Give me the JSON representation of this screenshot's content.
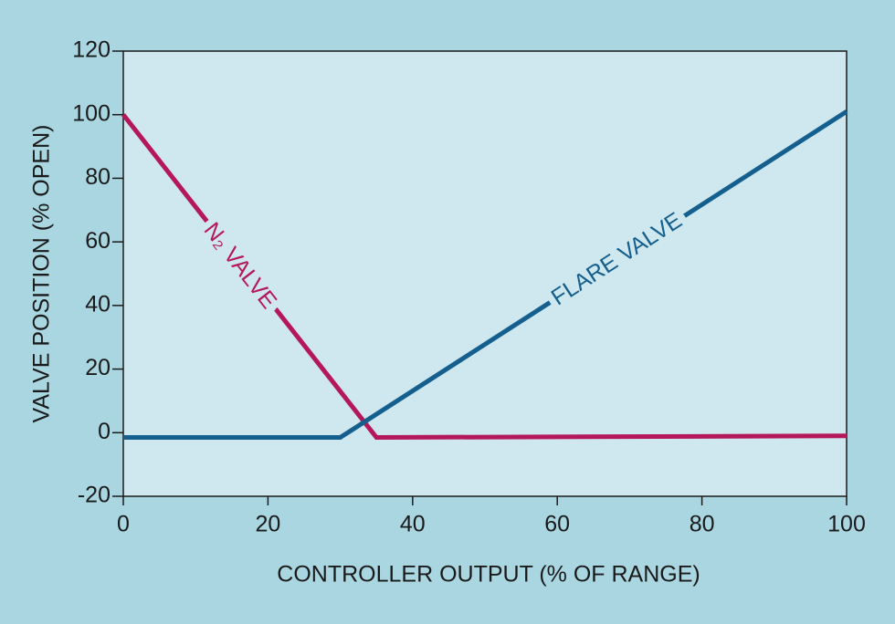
{
  "chart_data": {
    "type": "line",
    "x_label": "CONTROLLER OUTPUT (% OF RANGE)",
    "y_label": "VALVE POSITION (% OPEN)",
    "xlim": [
      0,
      100
    ],
    "xticks": [
      0,
      20,
      40,
      60,
      80,
      100
    ],
    "ylim": [
      -20,
      120
    ],
    "yticks": [
      -20,
      0,
      20,
      40,
      60,
      80,
      100,
      120
    ],
    "series": [
      {
        "name": "N₂ VALVE",
        "color": "#b5185a",
        "x": [
          0,
          35,
          100
        ],
        "values": [
          100,
          -1.5,
          -1
        ]
      },
      {
        "name": "FLARE VALVE",
        "color": "#155f8e",
        "x": [
          0,
          30,
          100
        ],
        "values": [
          -1.5,
          -1.5,
          101
        ]
      }
    ]
  }
}
